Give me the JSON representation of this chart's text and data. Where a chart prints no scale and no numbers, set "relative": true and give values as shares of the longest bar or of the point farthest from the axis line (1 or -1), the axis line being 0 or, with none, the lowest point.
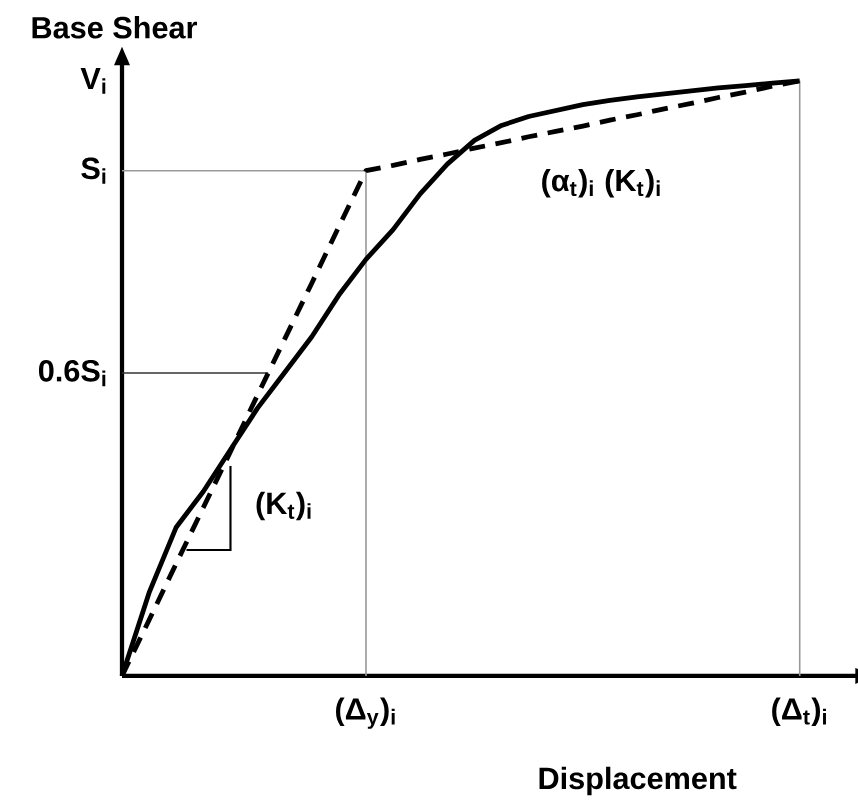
{
  "chart_data": {
    "type": "line",
    "relative": true,
    "xlabel": "Displacement",
    "ylabel": "Base Shear",
    "categories": [
      null,
      null,
      null,
      null,
      null,
      null,
      null,
      null,
      null,
      "(Δ$_{y}$)$_{i}$",
      null,
      null,
      null,
      null,
      null,
      null,
      null,
      null,
      null,
      null,
      null,
      null,
      null,
      null,
      null,
      "(Δ$_{t}$)$_{i}$"
    ],
    "series": [
      {
        "color": "#000000",
        "line_style": "solid",
        "values": [
          0,
          0.14,
          0.25,
          0.31,
          0.38,
          0.45,
          0.51,
          0.57,
          0.64,
          0.7,
          0.75,
          0.81,
          0.86,
          0.9,
          0.925,
          0.94,
          0.95,
          0.96,
          0.967,
          0.973,
          0.978,
          0.983,
          0.988,
          0.992,
          0.996,
          1.0
        ]
      },
      {
        "color": "#000000",
        "line_style": "dashed",
        "values": [
          0,
          0.094,
          0.189,
          0.283,
          0.377,
          0.472,
          0.566,
          0.66,
          0.755,
          0.849,
          0.858,
          0.868,
          0.877,
          0.887,
          0.896,
          0.906,
          0.915,
          0.924,
          0.934,
          0.943,
          0.953,
          0.962,
          0.972,
          0.981,
          0.991,
          1.0
        ]
      }
    ],
    "ref_lines": [
      {
        "axis": "y",
        "value": 0.509,
        "label": "0.6S$_{i}$",
        "color": "#333333"
      },
      {
        "axis": "y",
        "value": 0.849,
        "label": "S$_{i}$",
        "color": "#999999"
      },
      {
        "axis": "x",
        "value": "(Δ$_{y}$)$_{i}$",
        "color": "#999999"
      },
      {
        "axis": "x",
        "value": "(Δ$_{t}$)$_{i}$",
        "color": "#999999"
      }
    ],
    "annotations": [
      "V$_{i}$",
      "(α$_{t}$)$_{i}$ (K$_{t}$)$_{i}$",
      "(K$_{t}$)$_{i}$"
    ]
  }
}
